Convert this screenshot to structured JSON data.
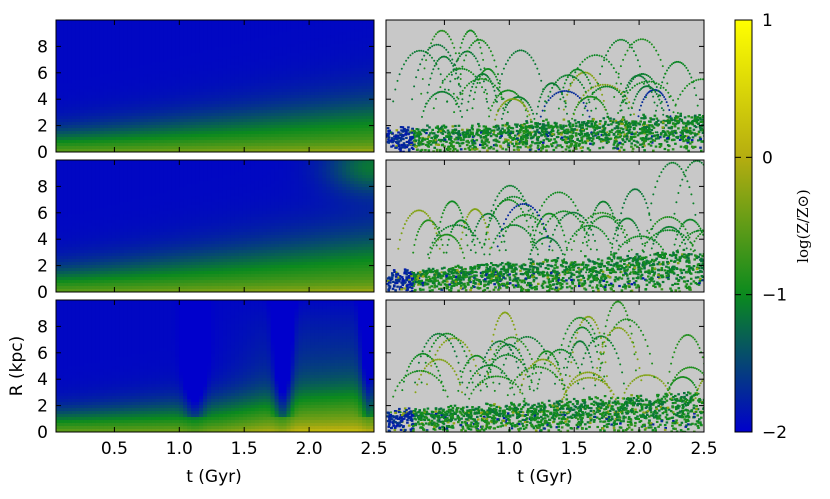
{
  "chart_data": {
    "type": "heatmap",
    "title": "",
    "xlabel": "t (Gyr)",
    "ylabel": "R (kpc)",
    "xlim": [
      0.05,
      2.5
    ],
    "ylim": [
      0,
      10
    ],
    "x_ticks": [
      "0.5",
      "1.0",
      "1.5",
      "2.0",
      "2.5"
    ],
    "x_tick_values": [
      0.5,
      1.0,
      1.5,
      2.0,
      2.5
    ],
    "y_ticks": [
      "0",
      "2",
      "4",
      "6",
      "8"
    ],
    "y_tick_values": [
      0,
      2,
      4,
      6,
      8
    ],
    "colorbar": {
      "label": "log(Z/Z⊙)",
      "range": [
        -2,
        1
      ],
      "ticks": [
        "1",
        "0",
        "−1",
        "−2"
      ],
      "tick_values": [
        1,
        0,
        -1,
        -2
      ],
      "colors": [
        "#0000cc",
        "#0b8a1e",
        "#b5ad10",
        "#ffff00"
      ]
    },
    "background_color": "#c8c8c8",
    "panels": [
      {
        "id": "gas-1",
        "kind": "gas",
        "row": 0,
        "col": 0,
        "edge_start": 1.0,
        "edge_end": 2.6,
        "edge_width": 2.2,
        "spikes": []
      },
      {
        "id": "stars-1",
        "kind": "stars",
        "row": 0,
        "col": 1,
        "edge_start": 1.6,
        "edge_end": 2.8,
        "extent": 9.0
      },
      {
        "id": "gas-2",
        "kind": "gas",
        "row": 1,
        "col": 0,
        "edge_start": 1.1,
        "edge_end": 3.0,
        "edge_width": 2.4,
        "spikes": [],
        "corner_blob": true
      },
      {
        "id": "stars-2",
        "kind": "stars",
        "row": 1,
        "col": 1,
        "edge_start": 1.4,
        "edge_end": 3.2,
        "extent": 9.0
      },
      {
        "id": "gas-3",
        "kind": "gas",
        "row": 2,
        "col": 0,
        "edge_start": 1.0,
        "edge_end": 2.2,
        "edge_width": 2.0,
        "spikes": [
          {
            "t": 1.12,
            "width": 0.08,
            "amount": -0.5
          },
          {
            "t": 1.8,
            "width": 0.07,
            "amount": -0.75
          },
          {
            "t": 2.46,
            "width": 0.06,
            "amount": -0.7
          }
        ],
        "late_enrichment": true
      },
      {
        "id": "stars-3",
        "kind": "stars",
        "row": 2,
        "col": 1,
        "edge_start": 1.5,
        "edge_end": 2.9,
        "extent": 9.2
      }
    ]
  }
}
